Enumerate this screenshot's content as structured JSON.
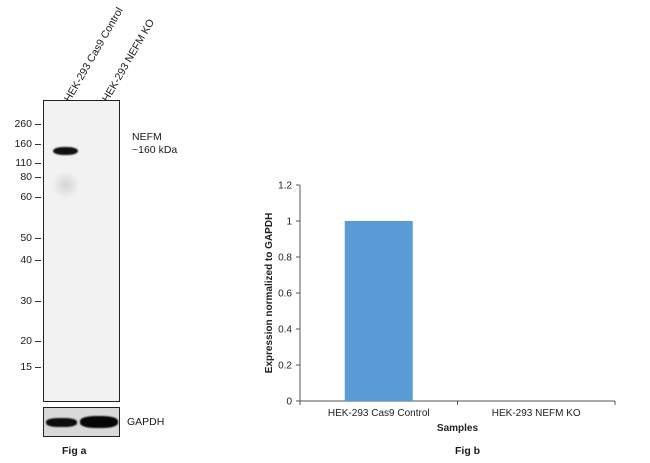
{
  "figure_a": {
    "caption": "Fig a",
    "lanes": [
      "HEK-293 Cas9 Control",
      "HEK-293 NEFM KO"
    ],
    "markers": [
      "260",
      "160",
      "110",
      "80",
      "60",
      "50",
      "40",
      "30",
      "20",
      "15"
    ],
    "target_label": "NEFM",
    "target_size": "~160 kDa",
    "loading_control": "GAPDH"
  },
  "figure_b": {
    "caption": "Fig b"
  },
  "chart_data": {
    "type": "bar",
    "categories": [
      "HEK-293 Cas9 Control",
      "HEK-293 NEFM KO"
    ],
    "values": [
      1,
      0
    ],
    "xlabel": "Samples",
    "ylabel": "Expression normalized to GAPDH",
    "ylim": [
      0,
      1.2
    ],
    "yticks": [
      "0",
      "0.2",
      "0.4",
      "0.6",
      "0.8",
      "1",
      "1.2"
    ],
    "grid": false,
    "bar_color": "#5b9bd5"
  }
}
